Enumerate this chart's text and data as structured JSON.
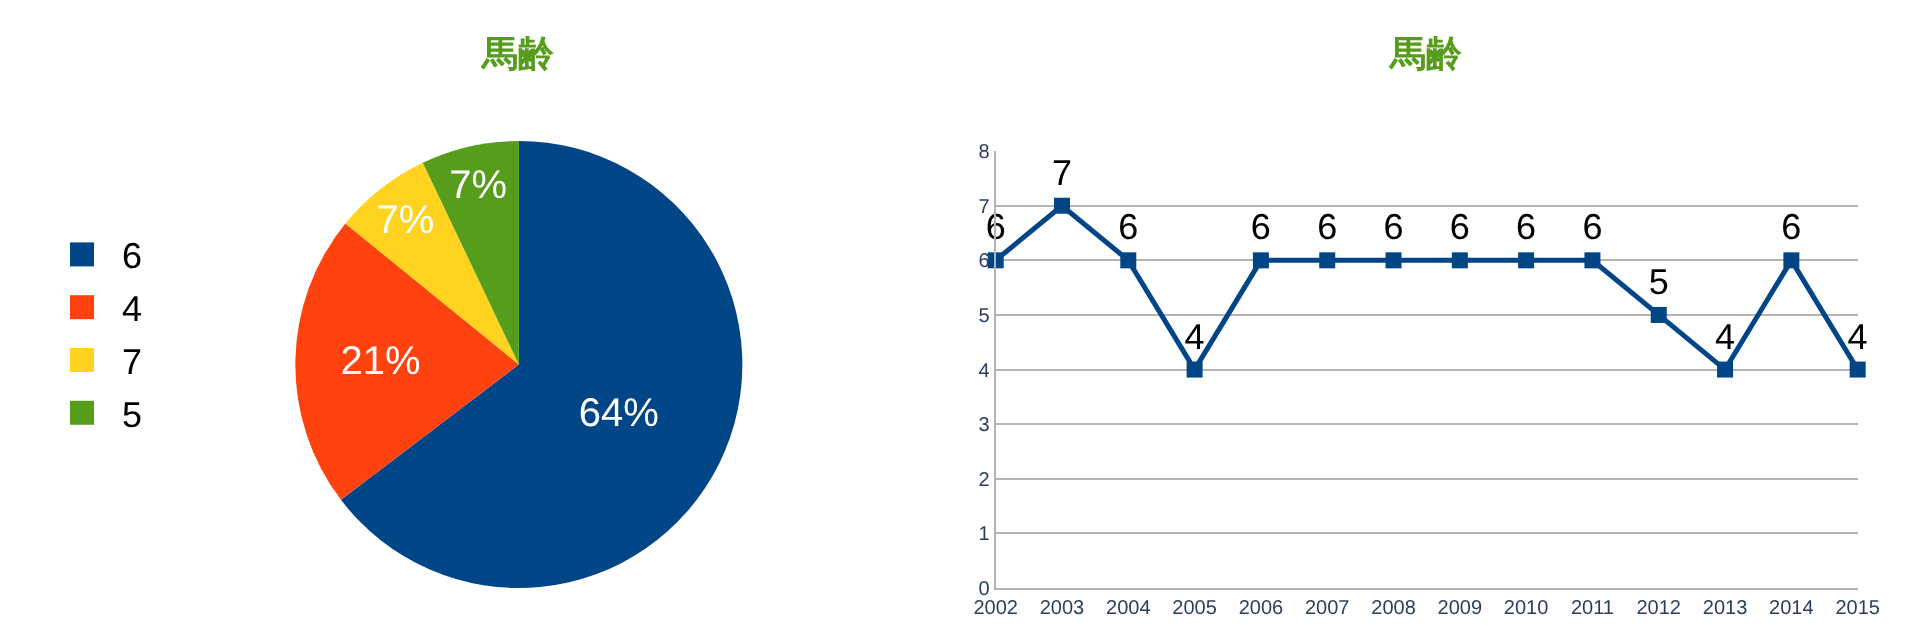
{
  "chart_data": [
    {
      "type": "pie",
      "title": "馬齢",
      "categories": [
        "6",
        "4",
        "7",
        "5"
      ],
      "values": [
        64,
        21,
        7,
        7
      ],
      "colors": [
        "#004586",
        "#ff420e",
        "#ffd320",
        "#579d1c"
      ],
      "value_labels": [
        "64%",
        "21%",
        "7%",
        "7%"
      ],
      "legend": "left"
    },
    {
      "type": "line",
      "title": "馬齢",
      "categories": [
        "2002",
        "2003",
        "2004",
        "2005",
        "2006",
        "2007",
        "2008",
        "2009",
        "2010",
        "2011",
        "2012",
        "2013",
        "2014",
        "2015"
      ],
      "series": [
        {
          "color": "#004586",
          "values": [
            6,
            7,
            6,
            4,
            6,
            6,
            6,
            6,
            6,
            6,
            5,
            4,
            6,
            4
          ]
        }
      ],
      "ylim": [
        0,
        8
      ],
      "yticks": [
        0,
        1,
        2,
        3,
        4,
        5,
        6,
        7,
        8
      ],
      "grid": "y",
      "marker": "square",
      "line_style": "solid",
      "data_labels": true
    }
  ]
}
